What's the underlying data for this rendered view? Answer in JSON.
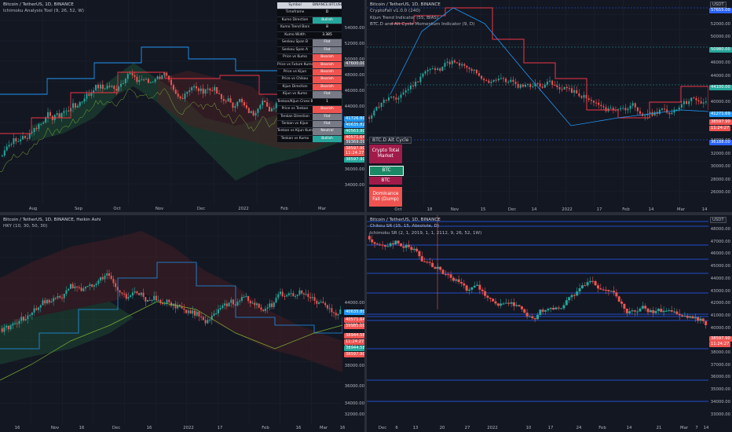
{
  "colors": {
    "bg": "#131722",
    "grid": "#1f2430",
    "up": "#26a69a",
    "down": "#ef5350",
    "cloud_up": "#1e4d34",
    "cloud_down": "#4d1f24",
    "kijun_blue": "#2196f3",
    "trend_red": "#f23645",
    "tenkan_green": "#7fb03a",
    "sr_line": "#2962ff"
  },
  "pane1": {
    "title": "Bitcoin / TetherUS, 1D, BINANCE",
    "indicator": "Ichimoku Analysis Tool (9, 26, 52, W)",
    "yaxis": [
      "54000.00",
      "52000.00",
      "50000.00",
      "48000.00",
      "46000.00",
      "44000.00",
      "42000.00",
      "40000.00",
      "38000.00",
      "36000.00",
      "34000.00"
    ],
    "xaxis": [
      "Aug",
      "Sep",
      "Oct",
      "Nov",
      "Dec",
      "2022",
      "Feb",
      "Mar"
    ],
    "price_tags": [
      {
        "label": "50958.00",
        "color": "#ef5350"
      },
      {
        "label": "47600.00",
        "color": "#5d606b"
      },
      {
        "label": "41726.80",
        "color": "#2196f3"
      },
      {
        "label": "40635.82",
        "color": "#2196f3"
      },
      {
        "label": "40563.90",
        "color": "#26a69a"
      },
      {
        "label": "40571.64",
        "color": "#ef5350"
      },
      {
        "label": "39369.09",
        "color": "#5d606b"
      },
      {
        "label": "38597.90",
        "color": "#ef5350"
      },
      {
        "label": "11:24:27",
        "color": "#ef5350"
      },
      {
        "label": "38597.90",
        "color": "#26a69a"
      }
    ],
    "table": {
      "header": {
        "k": "Symbol",
        "v": "BINANCE:BTCUSDT"
      },
      "rows": [
        {
          "k": "Timeframe",
          "v": "D",
          "color": "#0b0d12"
        },
        {
          "k": "Kumo Direction",
          "v": "Bullish",
          "color": "#26a69a"
        },
        {
          "k": "Kumo Trend Bars",
          "v": "8",
          "color": "#0b0d12"
        },
        {
          "k": "Kumo Width",
          "v": "3.385",
          "color": "#0b0d12"
        },
        {
          "k": "Senkou Span B",
          "v": "Flat",
          "color": "#787b86"
        },
        {
          "k": "Senkou Span A",
          "v": "Flat",
          "color": "#787b86"
        },
        {
          "k": "Price vs Kumo",
          "v": "Bearish",
          "color": "#ef5350"
        },
        {
          "k": "Price vs Future Kumo",
          "v": "Bearish",
          "color": "#ef5350"
        },
        {
          "k": "Price vs Kijun",
          "v": "Bearish",
          "color": "#ef5350"
        },
        {
          "k": "Price vs Chikou",
          "v": "Bearish",
          "color": "#ef5350"
        },
        {
          "k": "Kijun Direction",
          "v": "Bearish",
          "color": "#ef5350"
        },
        {
          "k": "Kijun vs Kumo",
          "v": "Flat",
          "color": "#787b86"
        },
        {
          "k": "Tenkan/Kijun Cross Bars",
          "v": "1",
          "color": "#0b0d12"
        },
        {
          "k": "Price vs Tenkan",
          "v": "Bearish",
          "color": "#ef5350"
        },
        {
          "k": "Tenkan Direction",
          "v": "Flat",
          "color": "#787b86"
        },
        {
          "k": "Tenkan vs Kijun",
          "v": "Flat",
          "color": "#787b86"
        },
        {
          "k": "Tenkan vs Kijun Kumo",
          "v": "Neutral",
          "color": "#787b86"
        },
        {
          "k": "Tenkan vs Kumo",
          "v": "Bullish",
          "color": "#26a69a"
        }
      ]
    }
  },
  "pane2": {
    "title": "Bitcoin / TetherUS, 1D, BINANCE",
    "indicators": [
      "CryptoFall v1.0.0 (240)",
      "Kijun Trend Indicator (55, BIAS)",
      "BTC.D and Alt Cycle Momentum Indicator (9, D)"
    ],
    "unit": "USDT",
    "yaxis": [
      "54000.00",
      "52000.00",
      "50000.00",
      "48000.00",
      "46000.00",
      "44000.00",
      "42000.00",
      "40000.00",
      "38000.00",
      "36000.00",
      "34000.00",
      "32000.00",
      "30000.00",
      "28000.00",
      "26000.00"
    ],
    "xaxis": [
      "Oct",
      "18",
      "Nov",
      "15",
      "Dec",
      "14",
      "2022",
      "17",
      "Feb",
      "14",
      "Mar",
      "14"
    ],
    "price_tags": [
      {
        "label": "57655.00",
        "color": "#2962ff"
      },
      {
        "label": "50980.00",
        "color": "#26a69a"
      },
      {
        "label": "44100.00",
        "color": "#26a69a"
      },
      {
        "label": "41271.69",
        "color": "#2196f3"
      },
      {
        "label": "38597.90",
        "color": "#ef5350"
      },
      {
        "label": "11:24:27",
        "color": "#ef5350"
      },
      {
        "label": "36188.00",
        "color": "#2962ff"
      }
    ],
    "cycle": {
      "title": "BTC.D Alt Cycle",
      "boxes": [
        {
          "label": "Crypto Total Market",
          "color": "#a11b4a"
        },
        {
          "label": "BTC",
          "color": "#1a8a66"
        },
        {
          "label": "BTC",
          "color": "#a11b4a"
        },
        {
          "label": "Dominance Fall (Dump)",
          "color": "#ef5350"
        }
      ]
    }
  },
  "pane3": {
    "title": "Bitcoin / TetherUS, 1D, BINANCE, Heikin Ashi",
    "indicator": "HKY (10, 30, 50, 30)",
    "yaxis": [
      "44000.00",
      "42000.00",
      "40000.00",
      "38000.00",
      "36000.00",
      "34000.00",
      "32000.00"
    ],
    "xaxis": [
      "16",
      "Nov",
      "16",
      "Dec",
      "16",
      "2022",
      "17",
      "Feb",
      "16",
      "Mar",
      "16"
    ],
    "price_tags": [
      {
        "label": "40635.80",
        "color": "#2196f3"
      },
      {
        "label": "40571.64",
        "color": "#ef5350"
      },
      {
        "label": "39985.00",
        "color": "#ef5350"
      },
      {
        "label": "38944.58",
        "color": "#ef5350"
      },
      {
        "label": "11:24:27",
        "color": "#ef5350"
      },
      {
        "label": "38944.58",
        "color": "#26a69a"
      },
      {
        "label": "38597.90",
        "color": "#ef5350"
      }
    ]
  },
  "pane4": {
    "title": "Bitcoin / TetherUS, 1D, BINANCE",
    "indicators": [
      "Chikou SR (15, 15, Absolute, D)",
      "Ichimoku SR (2, 1, 2019, 1, 1, 2112, 9, 26, 52, 1W)"
    ],
    "unit": "USDT",
    "yaxis": [
      "48000.00",
      "47000.00",
      "46000.00",
      "45000.00",
      "44000.00",
      "43000.00",
      "42000.00",
      "41000.00",
      "40000.00",
      "39000.00",
      "38000.00",
      "37000.00",
      "36000.00",
      "35000.00",
      "34000.00",
      "33000.00"
    ],
    "xaxis": [
      "Dec",
      "6",
      "13",
      "20",
      "27",
      "2022",
      "10",
      "17",
      "24",
      "Feb",
      "14",
      "21",
      "Mar",
      "7",
      "14"
    ],
    "price_tags": [
      {
        "label": "38597.90",
        "color": "#ef5350"
      },
      {
        "label": "11:24:27",
        "color": "#ef5350"
      }
    ]
  }
}
